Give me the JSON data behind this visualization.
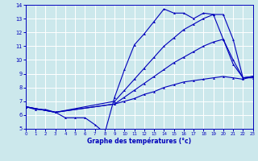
{
  "xlabel": "Graphe des températures (°c)",
  "background_color": "#cce8ec",
  "line_color": "#0000bb",
  "grid_color": "#ffffff",
  "xlim": [
    0,
    23
  ],
  "ylim": [
    5,
    14
  ],
  "yticks": [
    5,
    6,
    7,
    8,
    9,
    10,
    11,
    12,
    13,
    14
  ],
  "xticks": [
    0,
    1,
    2,
    3,
    4,
    5,
    6,
    7,
    8,
    9,
    10,
    11,
    12,
    13,
    14,
    15,
    16,
    17,
    18,
    19,
    20,
    21,
    22,
    23
  ],
  "series": [
    {
      "x": [
        0,
        1,
        2,
        3,
        4,
        5,
        6,
        7,
        8,
        9,
        10,
        11,
        12,
        13,
        14,
        15,
        16,
        17,
        18,
        19,
        20,
        21,
        22,
        23
      ],
      "y": [
        6.6,
        6.4,
        6.4,
        6.2,
        5.8,
        5.8,
        5.8,
        5.3,
        4.7,
        7.3,
        9.3,
        11.1,
        11.9,
        12.8,
        13.7,
        13.4,
        13.4,
        13.0,
        13.4,
        13.3,
        11.5,
        9.7,
        8.7,
        8.7
      ]
    },
    {
      "x": [
        0,
        3,
        9,
        10,
        11,
        12,
        13,
        14,
        15,
        16,
        17,
        18,
        19,
        20,
        21,
        22,
        23
      ],
      "y": [
        6.6,
        6.2,
        7.0,
        7.8,
        8.6,
        9.4,
        10.2,
        11.0,
        11.6,
        12.2,
        12.6,
        13.0,
        13.3,
        13.3,
        11.5,
        8.7,
        8.8
      ]
    },
    {
      "x": [
        0,
        3,
        9,
        10,
        11,
        12,
        13,
        14,
        15,
        16,
        17,
        18,
        19,
        20,
        21,
        22,
        23
      ],
      "y": [
        6.6,
        6.2,
        6.8,
        7.3,
        7.8,
        8.3,
        8.8,
        9.3,
        9.8,
        10.2,
        10.6,
        11.0,
        11.3,
        11.5,
        10.0,
        8.7,
        8.8
      ]
    },
    {
      "x": [
        0,
        3,
        9,
        10,
        11,
        12,
        13,
        14,
        15,
        16,
        17,
        18,
        19,
        20,
        21,
        22,
        23
      ],
      "y": [
        6.6,
        6.2,
        6.8,
        7.0,
        7.2,
        7.5,
        7.7,
        8.0,
        8.2,
        8.4,
        8.5,
        8.6,
        8.7,
        8.8,
        8.7,
        8.6,
        8.8
      ]
    }
  ]
}
